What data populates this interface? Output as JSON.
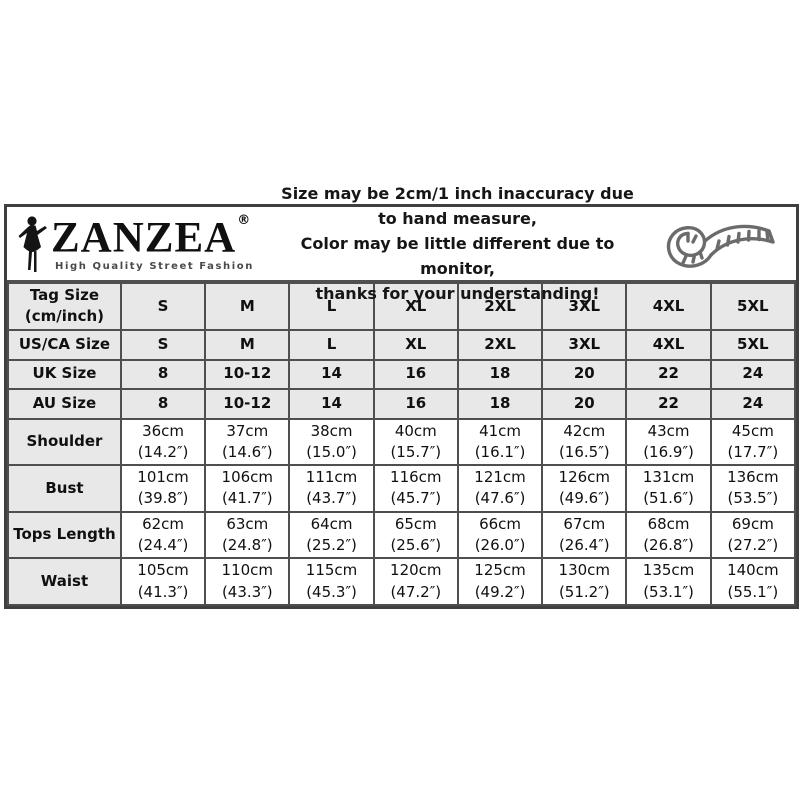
{
  "header": {
    "logo": {
      "brand": "ZANZEA",
      "registered_mark": "®",
      "tagline": "High Quality Street Fashion"
    },
    "notice_lines": [
      "Size may be 2cm/1 inch inaccuracy due to hand measure,",
      "Color may be little different due to monitor,",
      "thanks for your understanding!"
    ],
    "icons": {
      "woman_silhouette": "woman-silhouette-icon",
      "measuring_tape": "measuring-tape-icon"
    }
  },
  "colors": {
    "shaded_cell_bg": "#e8e8e8",
    "border": "#4f4f4f",
    "text": "#101010",
    "tape_icon": "#6b6b6b"
  },
  "table": {
    "size_columns": [
      "S",
      "M",
      "L",
      "XL",
      "2XL",
      "3XL",
      "4XL",
      "5XL"
    ],
    "rows": [
      {
        "key": "tag-size",
        "label_lines": [
          "Tag Size",
          "(cm/inch)"
        ],
        "shaded": true,
        "cells": [
          [
            "S"
          ],
          [
            "M"
          ],
          [
            "L"
          ],
          [
            "XL"
          ],
          [
            "2XL"
          ],
          [
            "3XL"
          ],
          [
            "4XL"
          ],
          [
            "5XL"
          ]
        ]
      },
      {
        "key": "us-ca-size",
        "label_lines": [
          "US/CA Size"
        ],
        "shaded": true,
        "cells": [
          [
            "S"
          ],
          [
            "M"
          ],
          [
            "L"
          ],
          [
            "XL"
          ],
          [
            "2XL"
          ],
          [
            "3XL"
          ],
          [
            "4XL"
          ],
          [
            "5XL"
          ]
        ]
      },
      {
        "key": "uk-size",
        "label_lines": [
          "UK Size"
        ],
        "shaded": true,
        "cells": [
          [
            "8"
          ],
          [
            "10-12"
          ],
          [
            "14"
          ],
          [
            "16"
          ],
          [
            "18"
          ],
          [
            "20"
          ],
          [
            "22"
          ],
          [
            "24"
          ]
        ]
      },
      {
        "key": "au-size",
        "label_lines": [
          "AU Size"
        ],
        "shaded": true,
        "cells": [
          [
            "8"
          ],
          [
            "10-12"
          ],
          [
            "14"
          ],
          [
            "16"
          ],
          [
            "18"
          ],
          [
            "20"
          ],
          [
            "22"
          ],
          [
            "24"
          ]
        ]
      },
      {
        "key": "shoulder",
        "label_lines": [
          "Shoulder"
        ],
        "shaded": false,
        "cells": [
          [
            "36cm",
            "(14.2″)"
          ],
          [
            "37cm",
            "(14.6″)"
          ],
          [
            "38cm",
            "(15.0″)"
          ],
          [
            "40cm",
            "(15.7″)"
          ],
          [
            "41cm",
            "(16.1″)"
          ],
          [
            "42cm",
            "(16.5″)"
          ],
          [
            "43cm",
            "(16.9″)"
          ],
          [
            "45cm",
            "(17.7″)"
          ]
        ]
      },
      {
        "key": "bust",
        "label_lines": [
          "Bust"
        ],
        "shaded": false,
        "cells": [
          [
            "101cm",
            "(39.8″)"
          ],
          [
            "106cm",
            "(41.7″)"
          ],
          [
            "111cm",
            "(43.7″)"
          ],
          [
            "116cm",
            "(45.7″)"
          ],
          [
            "121cm",
            "(47.6″)"
          ],
          [
            "126cm",
            "(49.6″)"
          ],
          [
            "131cm",
            "(51.6″)"
          ],
          [
            "136cm",
            "(53.5″)"
          ]
        ]
      },
      {
        "key": "tops-length",
        "label_lines": [
          "Tops Length"
        ],
        "shaded": false,
        "cells": [
          [
            "62cm",
            "(24.4″)"
          ],
          [
            "63cm",
            "(24.8″)"
          ],
          [
            "64cm",
            "(25.2″)"
          ],
          [
            "65cm",
            "(25.6″)"
          ],
          [
            "66cm",
            "(26.0″)"
          ],
          [
            "67cm",
            "(26.4″)"
          ],
          [
            "68cm",
            "(26.8″)"
          ],
          [
            "69cm",
            "(27.2″)"
          ]
        ]
      },
      {
        "key": "waist",
        "label_lines": [
          "Waist"
        ],
        "shaded": false,
        "cells": [
          [
            "105cm",
            "(41.3″)"
          ],
          [
            "110cm",
            "(43.3″)"
          ],
          [
            "115cm",
            "(45.3″)"
          ],
          [
            "120cm",
            "(47.2″)"
          ],
          [
            "125cm",
            "(49.2″)"
          ],
          [
            "130cm",
            "(51.2″)"
          ],
          [
            "135cm",
            "(53.1″)"
          ],
          [
            "140cm",
            "(55.1″)"
          ]
        ]
      }
    ]
  }
}
